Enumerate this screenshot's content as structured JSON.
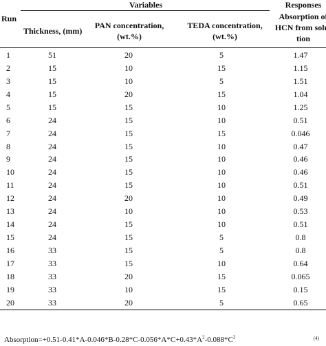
{
  "table": {
    "header": {
      "run": "Run",
      "variables": "Variables",
      "responses": "Responses",
      "thickness": "Thickness, (mm)",
      "pan_line1": "PAN concentration,",
      "pan_line2": "(wt.%)",
      "teda_line1": "TEDA concentration,",
      "teda_line2": "(wt.%)",
      "resp_line1": "Absorption of",
      "resp_line2": "HCN from solu-",
      "resp_line3": "tion"
    },
    "rows": [
      {
        "run": "1",
        "thickness": "51",
        "pan": "20",
        "teda": "5",
        "response": "1.47"
      },
      {
        "run": "2",
        "thickness": "15",
        "pan": "10",
        "teda": "15",
        "response": "1.15"
      },
      {
        "run": "3",
        "thickness": "15",
        "pan": "10",
        "teda": "5",
        "response": "1.51"
      },
      {
        "run": "4",
        "thickness": "15",
        "pan": "20",
        "teda": "15",
        "response": "1.04"
      },
      {
        "run": "5",
        "thickness": "15",
        "pan": "15",
        "teda": "10",
        "response": "1.25"
      },
      {
        "run": "6",
        "thickness": "24",
        "pan": "15",
        "teda": "10",
        "response": "0.51"
      },
      {
        "run": "7",
        "thickness": "24",
        "pan": "15",
        "teda": "15",
        "response": "0.046"
      },
      {
        "run": "8",
        "thickness": "24",
        "pan": "15",
        "teda": "10",
        "response": "0.47"
      },
      {
        "run": "9",
        "thickness": "24",
        "pan": "15",
        "teda": "10",
        "response": "0.46"
      },
      {
        "run": "10",
        "thickness": "24",
        "pan": "15",
        "teda": "10",
        "response": "0.46"
      },
      {
        "run": "11",
        "thickness": "24",
        "pan": "15",
        "teda": "10",
        "response": "0.51"
      },
      {
        "run": "12",
        "thickness": "24",
        "pan": "20",
        "teda": "10",
        "response": "0.49"
      },
      {
        "run": "13",
        "thickness": "24",
        "pan": "10",
        "teda": "10",
        "response": "0.53"
      },
      {
        "run": "14",
        "thickness": "24",
        "pan": "15",
        "teda": "10",
        "response": "0.51"
      },
      {
        "run": "15",
        "thickness": "24",
        "pan": "15",
        "teda": "5",
        "response": "0.8"
      },
      {
        "run": "16",
        "thickness": "33",
        "pan": "15",
        "teda": "5",
        "response": "0.8"
      },
      {
        "run": "17",
        "thickness": "33",
        "pan": "15",
        "teda": "10",
        "response": "0.64"
      },
      {
        "run": "18",
        "thickness": "33",
        "pan": "20",
        "teda": "15",
        "response": "0.065"
      },
      {
        "run": "19",
        "thickness": "33",
        "pan": "10",
        "teda": "15",
        "response": "0.15"
      },
      {
        "run": "20",
        "thickness": "33",
        "pan": "20",
        "teda": "5",
        "response": "0.65"
      }
    ]
  },
  "equation": {
    "p1": "Absorption=+0.51-0.41*A-0.046*B-0.28*C-0.056*A*C+0.43*A",
    "sup1": "2",
    "p2": "-0.088*C",
    "sup2": "2",
    "number": "(4)"
  }
}
